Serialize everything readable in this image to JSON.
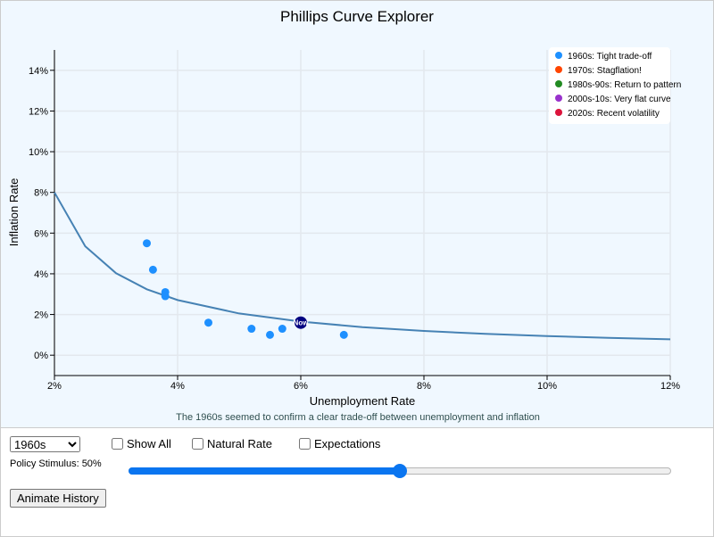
{
  "chart_data": {
    "type": "scatter",
    "title": "Phillips Curve Explorer",
    "xlabel": "Unemployment Rate",
    "ylabel": "Inflation Rate",
    "caption": "The 1960s seemed to confirm a clear trade-off between unemployment and inflation",
    "xlim": [
      2,
      12
    ],
    "ylim": [
      -1,
      15
    ],
    "xticks": [
      2,
      4,
      6,
      8,
      10,
      12
    ],
    "yticks": [
      0,
      2,
      4,
      6,
      8,
      10,
      12,
      14
    ],
    "tick_suffix": "%",
    "grid": true,
    "legend_position": "top-right",
    "legend": [
      {
        "label": "1960s: Tight trade-off",
        "color": "#1e90ff"
      },
      {
        "label": "1970s: Stagflation!",
        "color": "#ff4500"
      },
      {
        "label": "1980s-90s: Return to pattern",
        "color": "#228b22"
      },
      {
        "label": "2000s-10s: Very flat curve",
        "color": "#9932cc"
      },
      {
        "label": "2020s: Recent volatility",
        "color": "#dc143c"
      }
    ],
    "series": [
      {
        "name": "1960s: Tight trade-off",
        "color": "#1e90ff",
        "points": [
          [
            3.5,
            5.5
          ],
          [
            3.6,
            4.2
          ],
          [
            3.8,
            3.1
          ],
          [
            3.8,
            2.9
          ],
          [
            4.5,
            1.6
          ],
          [
            5.2,
            1.3
          ],
          [
            5.5,
            1.0
          ],
          [
            5.7,
            1.3
          ],
          [
            6.7,
            1.0
          ]
        ]
      }
    ],
    "curve": {
      "color": "#4682b4",
      "points": [
        [
          2,
          8.0
        ],
        [
          2.5,
          5.35
        ],
        [
          3,
          4.03
        ],
        [
          3.5,
          3.24
        ],
        [
          4,
          2.71
        ],
        [
          5,
          2.05
        ],
        [
          6,
          1.65
        ],
        [
          7,
          1.38
        ],
        [
          8,
          1.19
        ],
        [
          9,
          1.05
        ],
        [
          10,
          0.94
        ],
        [
          11,
          0.85
        ],
        [
          12,
          0.78
        ]
      ]
    },
    "current": {
      "label": "Now",
      "x": 6.0,
      "y": 1.6,
      "color": "#000080"
    }
  },
  "controls": {
    "decade_select": "1960s",
    "show_all": "Show All",
    "natural_rate": "Natural Rate",
    "expectations": "Expectations",
    "stimulus_label": "Policy Stimulus: 50%",
    "stimulus_value": 50,
    "animate": "Animate History"
  }
}
